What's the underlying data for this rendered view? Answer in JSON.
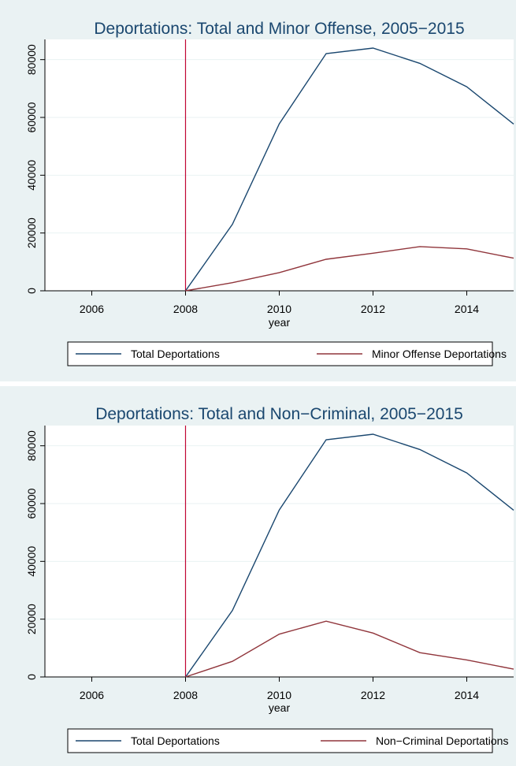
{
  "chart_data": [
    {
      "type": "line",
      "title": "Deportations: Total and Minor Offense, 2005−2015",
      "xlabel": "year",
      "ylabel": "",
      "xlim": [
        2005,
        2015
      ],
      "ylim": [
        0,
        87000
      ],
      "xticks": [
        2006,
        2008,
        2010,
        2012,
        2014
      ],
      "yticks": [
        0,
        20000,
        40000,
        60000,
        80000
      ],
      "grid": true,
      "legend_position": "bottom",
      "vertical_line": 2008,
      "x": [
        2008,
        2009,
        2010,
        2011,
        2012,
        2013,
        2014,
        2015
      ],
      "series": [
        {
          "name": "Total Deportations",
          "color": "#1a476f",
          "values": [
            0,
            23000,
            57800,
            82100,
            84000,
            78700,
            70600,
            57700
          ]
        },
        {
          "name": "Minor Offense Deportations",
          "color": "#90353b",
          "values": [
            0,
            2800,
            6300,
            10900,
            13000,
            15300,
            14500,
            11300
          ]
        }
      ]
    },
    {
      "type": "line",
      "title": "Deportations: Total and Non−Criminal, 2005−2015",
      "xlabel": "year",
      "ylabel": "",
      "xlim": [
        2005,
        2015
      ],
      "ylim": [
        0,
        87000
      ],
      "xticks": [
        2006,
        2008,
        2010,
        2012,
        2014
      ],
      "yticks": [
        0,
        20000,
        40000,
        60000,
        80000
      ],
      "grid": true,
      "legend_position": "bottom",
      "vertical_line": 2008,
      "x": [
        2008,
        2009,
        2010,
        2011,
        2012,
        2013,
        2014,
        2015
      ],
      "series": [
        {
          "name": "Total Deportations",
          "color": "#1a476f",
          "values": [
            0,
            23000,
            57800,
            82100,
            84000,
            78700,
            70600,
            57700
          ]
        },
        {
          "name": "Non−Criminal Deportations",
          "color": "#90353b",
          "values": [
            0,
            5400,
            14800,
            19300,
            15200,
            8400,
            5900,
            2700
          ]
        }
      ]
    }
  ],
  "styles": {
    "vertical_line_color": "#c10534",
    "grid_color": "#eaf2f3",
    "panel_background": "#eaf2f3"
  }
}
